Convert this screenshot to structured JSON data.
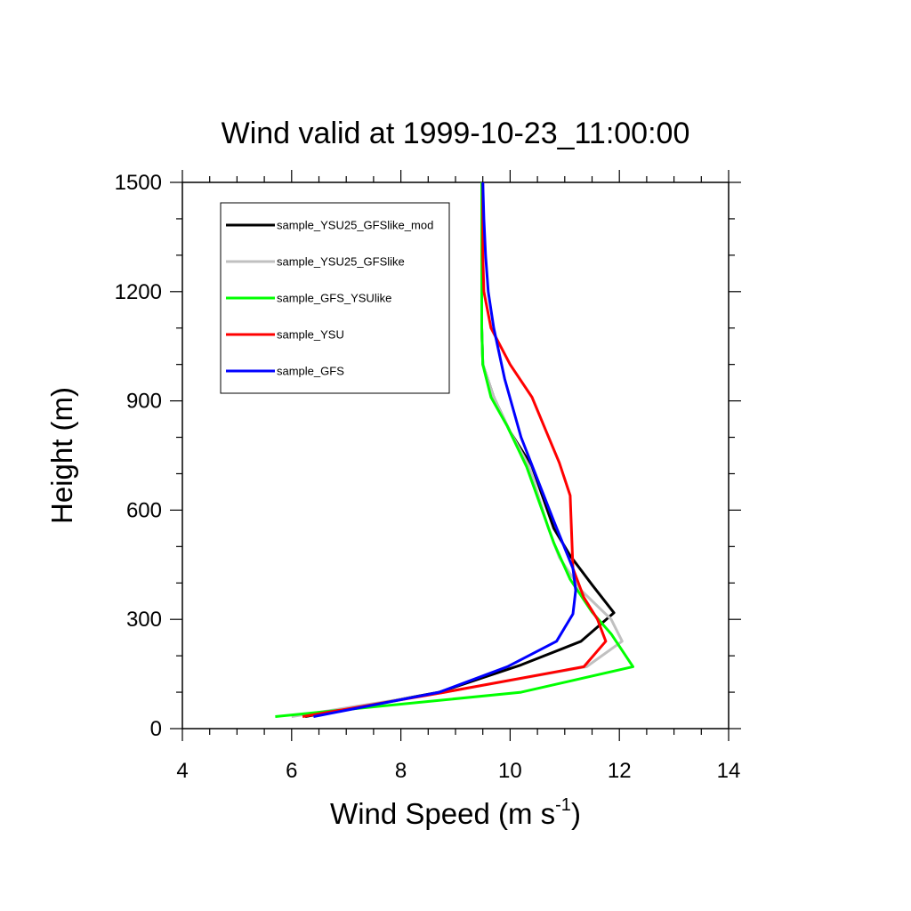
{
  "chart_data": {
    "type": "line",
    "title": "Wind valid at 1999-10-23_11:00:00",
    "xlabel": "Wind Speed (m s",
    "xlabel_superscript": "-1",
    "xlabel_suffix": ")",
    "ylabel": "Height (m)",
    "xlim": [
      4,
      14
    ],
    "ylim": [
      0,
      1500
    ],
    "x_ticks": [
      4,
      6,
      8,
      10,
      12,
      14
    ],
    "y_ticks": [
      0,
      300,
      600,
      900,
      1200,
      1500
    ],
    "x_tick_labels": [
      "4",
      "6",
      "8",
      "10",
      "12",
      "14"
    ],
    "y_tick_labels": [
      "0",
      "300",
      "600",
      "900",
      "1200",
      "1500"
    ],
    "grid": false,
    "legend_position": "top-left",
    "series": [
      {
        "name": "sample_YSU25_GFSlike_mod",
        "color": "#000000",
        "points": [
          [
            6.25,
            33
          ],
          [
            8.7,
            100
          ],
          [
            10.2,
            175
          ],
          [
            11.3,
            240
          ],
          [
            11.9,
            318
          ],
          [
            11.5,
            395
          ],
          [
            11.1,
            475
          ],
          [
            10.8,
            550
          ],
          [
            10.4,
            720
          ],
          [
            10.0,
            815
          ],
          [
            9.7,
            910
          ],
          [
            9.5,
            1000
          ],
          [
            9.48,
            1100
          ],
          [
            9.48,
            1300
          ],
          [
            9.48,
            1500
          ]
        ]
      },
      {
        "name": "sample_YSU25_GFSlike",
        "color": "#c0c0c0",
        "points": [
          [
            6.0,
            33
          ],
          [
            8.8,
            100
          ],
          [
            11.4,
            170
          ],
          [
            12.05,
            240
          ],
          [
            11.85,
            300
          ],
          [
            11.3,
            380
          ],
          [
            10.9,
            470
          ],
          [
            10.7,
            550
          ],
          [
            10.35,
            720
          ],
          [
            10.0,
            815
          ],
          [
            9.7,
            910
          ],
          [
            9.5,
            1000
          ],
          [
            9.48,
            1100
          ],
          [
            9.48,
            1300
          ],
          [
            9.48,
            1500
          ]
        ]
      },
      {
        "name": "sample_GFS_YSUlike",
        "color": "#00ff00",
        "points": [
          [
            5.7,
            33
          ],
          [
            10.2,
            100
          ],
          [
            12.25,
            170
          ],
          [
            11.85,
            260
          ],
          [
            11.5,
            320
          ],
          [
            11.1,
            410
          ],
          [
            10.8,
            510
          ],
          [
            10.3,
            720
          ],
          [
            9.95,
            830
          ],
          [
            9.65,
            910
          ],
          [
            9.5,
            1000
          ],
          [
            9.48,
            1100
          ],
          [
            9.48,
            1300
          ],
          [
            9.48,
            1500
          ]
        ]
      },
      {
        "name": "sample_YSU",
        "color": "#ff0000",
        "points": [
          [
            6.2,
            33
          ],
          [
            8.8,
            100
          ],
          [
            11.35,
            170
          ],
          [
            11.75,
            240
          ],
          [
            11.6,
            300
          ],
          [
            11.35,
            360
          ],
          [
            11.15,
            440
          ],
          [
            11.1,
            640
          ],
          [
            10.9,
            730
          ],
          [
            10.65,
            820
          ],
          [
            10.4,
            910
          ],
          [
            10.0,
            1000
          ],
          [
            9.65,
            1100
          ],
          [
            9.52,
            1200
          ],
          [
            9.5,
            1300
          ],
          [
            9.5,
            1500
          ]
        ]
      },
      {
        "name": "sample_GFS",
        "color": "#0000ff",
        "points": [
          [
            6.4,
            33
          ],
          [
            8.7,
            100
          ],
          [
            9.95,
            170
          ],
          [
            10.85,
            240
          ],
          [
            11.15,
            315
          ],
          [
            11.2,
            380
          ],
          [
            11.15,
            440
          ],
          [
            10.8,
            570
          ],
          [
            10.2,
            800
          ],
          [
            9.9,
            960
          ],
          [
            9.7,
            1100
          ],
          [
            9.6,
            1200
          ],
          [
            9.55,
            1300
          ],
          [
            9.52,
            1400
          ],
          [
            9.5,
            1500
          ]
        ]
      }
    ]
  }
}
